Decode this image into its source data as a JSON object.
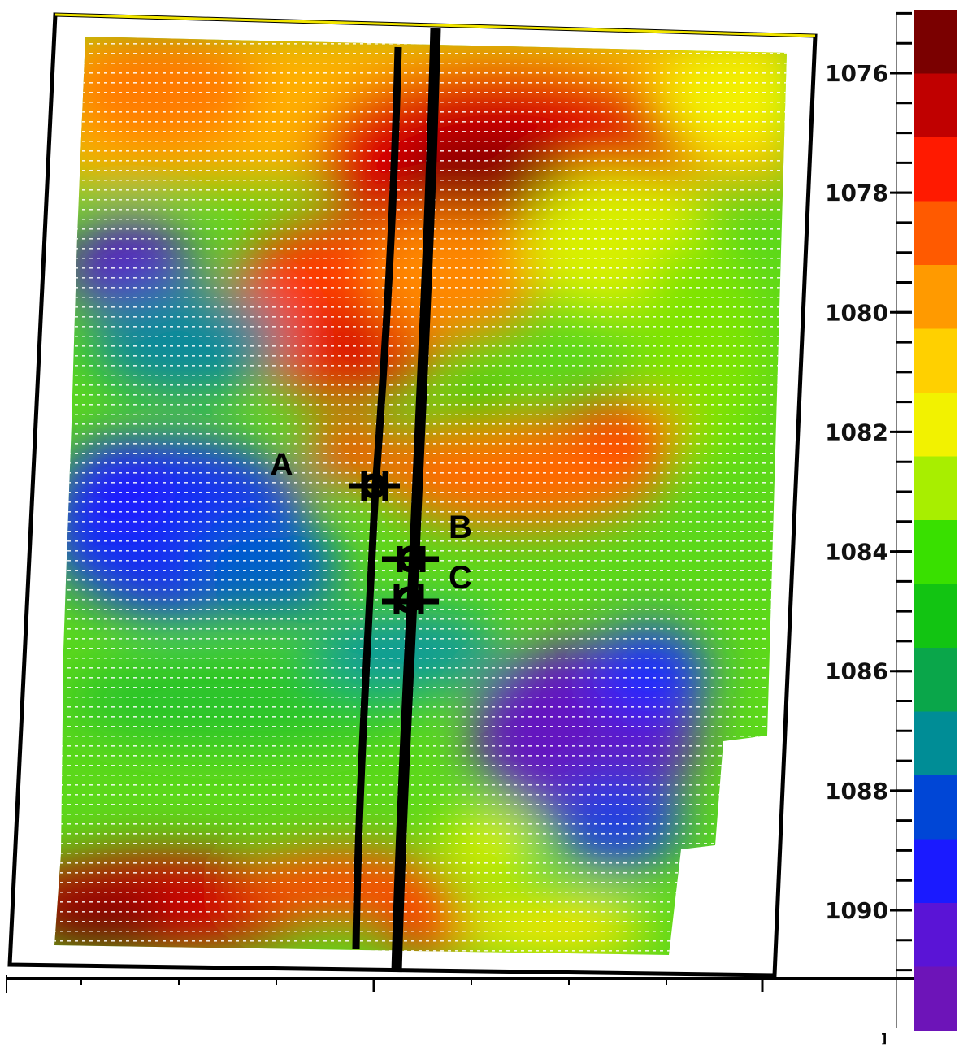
{
  "chart_data": {
    "type": "heatmap",
    "title": "",
    "xlabel": "",
    "ylabel": "",
    "colorscale": {
      "ticks": [
        1076,
        1078,
        1080,
        1082,
        1084,
        1086,
        1088,
        1090
      ],
      "range": [
        1075,
        1091
      ],
      "reversed": true,
      "colors": [
        "#7a0000",
        "#c00000",
        "#ff1a00",
        "#ff5a00",
        "#ff9a00",
        "#ffd000",
        "#f2f200",
        "#a8ee00",
        "#39e000",
        "#12c412",
        "#0aa64a",
        "#008d96",
        "#0046d6",
        "#1a1aff",
        "#5a14d6",
        "#6d14b8"
      ]
    },
    "grid": false,
    "annotations": [
      {
        "label": "A"
      },
      {
        "label": "B"
      },
      {
        "label": "C"
      }
    ],
    "corner_text": "]"
  }
}
